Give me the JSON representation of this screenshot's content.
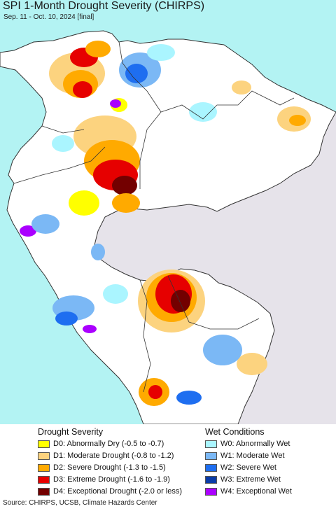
{
  "title": "SPI 1-Month Drought Severity (CHIRPS)",
  "subtitle": "Sep. 11 - Oct. 10, 2024 [final]",
  "colors": {
    "ocean": "#b3f3f3",
    "land_outside": "#e6e3ea",
    "no_anomaly": "#ffffff",
    "border": "#333333"
  },
  "legend": {
    "drought_heading": "Drought Severity",
    "wet_heading": "Wet Conditions",
    "drought": [
      {
        "label": "D0: Abnormally Dry (-0.5 to -0.7)",
        "color": "#ffff00"
      },
      {
        "label": "D1: Moderate Drought (-0.8 to -1.2)",
        "color": "#fcd37f"
      },
      {
        "label": "D2: Severe Drought (-1.3 to -1.5)",
        "color": "#ffaa00"
      },
      {
        "label": "D3: Extreme Drought (-1.6 to -1.9)",
        "color": "#e60000"
      },
      {
        "label": "D4: Exceptional Drought (-2.0 or less)",
        "color": "#730000"
      }
    ],
    "wet": [
      {
        "label": "W0: Abnormally Wet",
        "color": "#aaf5ff"
      },
      {
        "label": "W1: Moderate Wet",
        "color": "#7bb8f5"
      },
      {
        "label": "W2: Severe Wet",
        "color": "#1e6ef0"
      },
      {
        "label": "W3: Extreme Wet",
        "color": "#0a3ca8"
      },
      {
        "label": "W4: Exceptional Wet",
        "color": "#aa00ff"
      }
    ]
  },
  "source": "Source: CHIRPS, UCSB, Climate Hazards Center"
}
